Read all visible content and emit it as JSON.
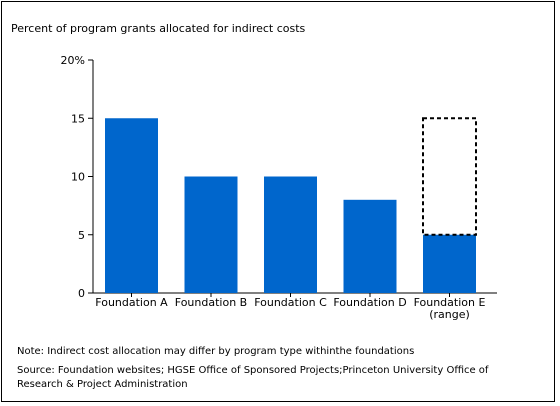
{
  "title": "Percent of program grants allocated for indirect costs",
  "note": "Note: Indirect cost allocation may differ by program type withinthe foundations",
  "source": "Source: Foundation websites; HGSE Office of Sponsored Projects;Princeton University Office of Research & Project Administration",
  "colors": {
    "bar": "#0066cc",
    "axis": "#000000"
  },
  "chart_data": {
    "type": "bar",
    "title": "Percent of program grants allocated for indirect costs",
    "xlabel": "",
    "ylabel": "",
    "ylim": [
      0,
      20
    ],
    "y_ticks": [
      0,
      5,
      10,
      15,
      20
    ],
    "y_tick_labels": [
      "0",
      "5",
      "10",
      "15",
      "20%"
    ],
    "grid": false,
    "categories": [
      [
        "Foundation A"
      ],
      [
        "Foundation B"
      ],
      [
        "Foundation C"
      ],
      [
        "Foundation D"
      ],
      [
        "Foundation E",
        "(range)"
      ]
    ],
    "values": [
      15,
      10,
      10,
      8,
      5
    ],
    "range": {
      "category_index": 4,
      "low": 5,
      "high": 15
    }
  }
}
